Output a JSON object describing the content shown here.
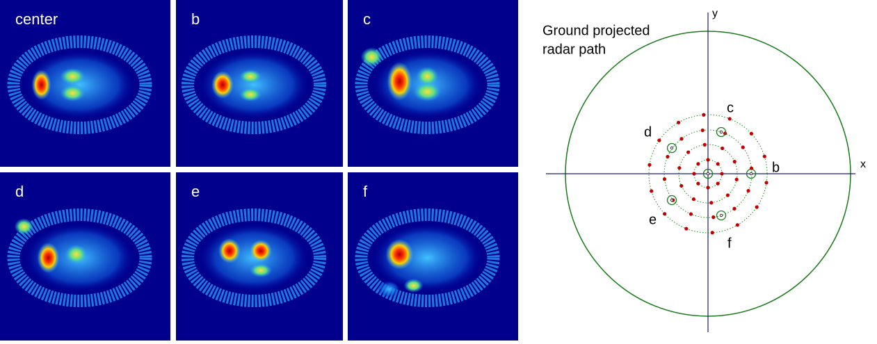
{
  "panels": [
    "center",
    "b",
    "c",
    "d",
    "e",
    "f"
  ],
  "diagram": {
    "title_lines": [
      "Ground projected",
      "radar path"
    ],
    "x_axis": "x",
    "y_axis": "y",
    "points": [
      "c",
      "b",
      "d",
      "e",
      "f"
    ]
  }
}
